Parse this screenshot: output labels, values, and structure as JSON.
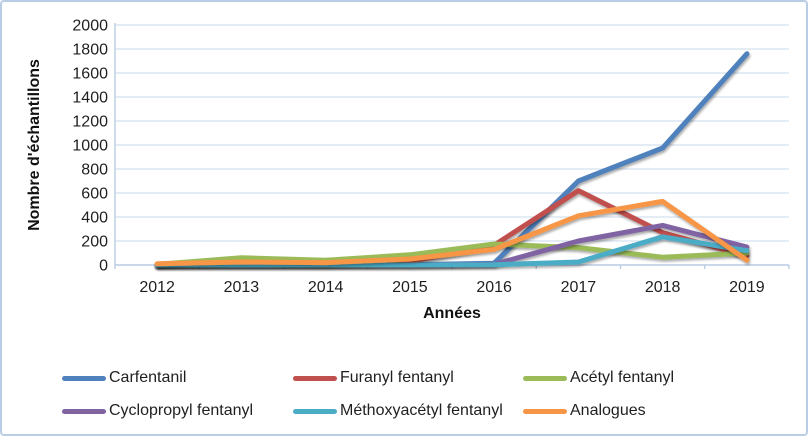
{
  "chart_data": {
    "type": "line",
    "title": "",
    "xlabel": "Années",
    "ylabel": "Nombre d'échantillons",
    "categories": [
      "2012",
      "2013",
      "2014",
      "2015",
      "2016",
      "2017",
      "2018",
      "2019"
    ],
    "yticks": [
      0,
      200,
      400,
      600,
      800,
      1000,
      1200,
      1400,
      1600,
      1800,
      2000
    ],
    "ylim": [
      0,
      2000
    ],
    "grid": "horizontal",
    "legend_position": "bottom",
    "series": [
      {
        "name": "Carfentanil",
        "color": "#4F81BD",
        "values": [
          0,
          0,
          0,
          2,
          15,
          700,
          975,
          1760
        ]
      },
      {
        "name": "Furanyl fentanyl",
        "color": "#C0504D",
        "values": [
          0,
          5,
          5,
          30,
          165,
          620,
          270,
          75
        ]
      },
      {
        "name": "Acétyl fentanyl",
        "color": "#9BBB59",
        "values": [
          5,
          60,
          40,
          85,
          175,
          145,
          65,
          100
        ]
      },
      {
        "name": "Cyclopropyl fentanyl",
        "color": "#8064A2",
        "values": [
          0,
          0,
          0,
          0,
          5,
          200,
          330,
          150
        ]
      },
      {
        "name": "Méthoxyacétyl fentanyl",
        "color": "#4BACC6",
        "values": [
          0,
          0,
          0,
          0,
          2,
          25,
          235,
          120
        ]
      },
      {
        "name": "Analogues",
        "color": "#F79646",
        "values": [
          10,
          25,
          20,
          50,
          130,
          410,
          530,
          40
        ]
      }
    ],
    "colors": {
      "gridline": "#DCE6F2",
      "axis_line": "#B8CCE4",
      "frame_border": "#B9CDE4",
      "text": "#1F1F1F"
    }
  }
}
